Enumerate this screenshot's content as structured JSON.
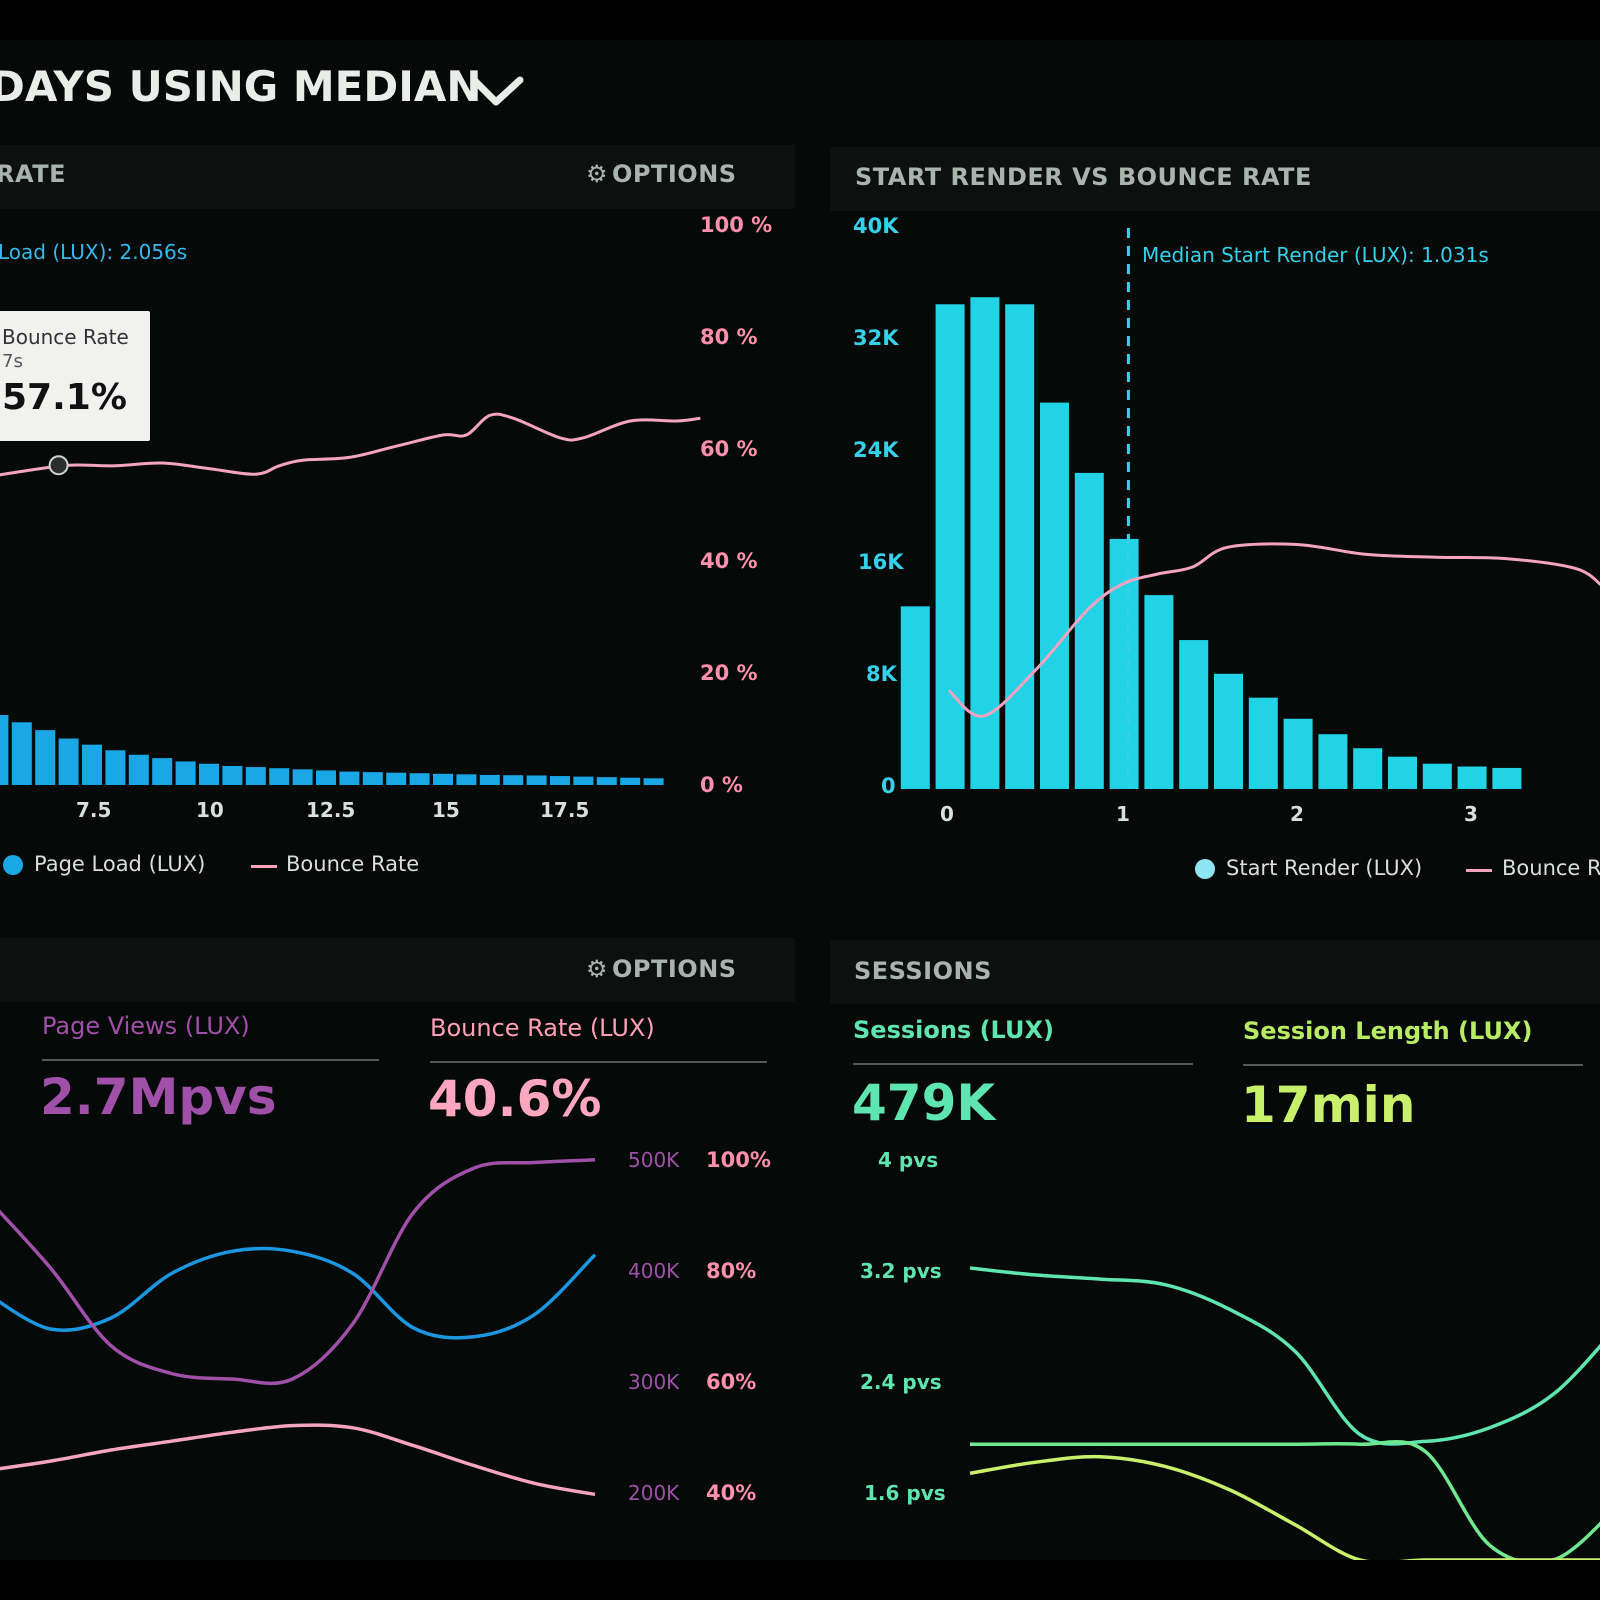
{
  "header": {
    "title_part1": "DAYS USING",
    "title_part2": "MEDIAN"
  },
  "panels": {
    "page_load": {
      "title": "RATE",
      "options": "OPTIONS",
      "median_label": "Load (LUX): 2.056s",
      "tooltip": {
        "series": "Bounce Rate",
        "x": "7s",
        "value": "57.1%"
      },
      "legend": [
        "Page Load (LUX)",
        "Bounce Rate"
      ]
    },
    "start_render": {
      "title": "START RENDER VS BOUNCE RATE",
      "median_label": "Median Start Render (LUX): 1.031s",
      "legend": [
        "Start Render (LUX)",
        "Bounce R"
      ]
    },
    "page_views": {
      "options": "OPTIONS",
      "metrics": [
        {
          "label": "Page Views (LUX)",
          "value": "2.7Mpvs"
        },
        {
          "label": "Bounce Rate (LUX)",
          "value": "40.6%"
        }
      ]
    },
    "sessions": {
      "title": "SESSIONS",
      "metrics": [
        {
          "label": "Sessions (LUX)",
          "value": "479K"
        },
        {
          "label": "Session Length (LUX)",
          "value": "17min"
        }
      ]
    }
  },
  "colors": {
    "page_load_bars": "#1aa7e6",
    "bounce_rate": "#f4a3c0",
    "start_render_bars": "#22d3e6",
    "page_views": "#a050a8",
    "bounce_rate_lux": "#ff8fae",
    "sessions": "#5fe6b0",
    "session_length": "#c9f06a"
  },
  "chart_data": [
    {
      "type": "bar",
      "x_tick_labels": [
        "7.5",
        "10",
        "12.5",
        "15",
        "17.5"
      ],
      "y_right_tick_labels": [
        "100 %",
        "80 %",
        "60 %",
        "40 %",
        "20 %",
        "0 %"
      ],
      "y_right_range": [
        0,
        100
      ],
      "x_range": [
        4.5,
        20.5
      ],
      "series": [
        {
          "name": "Page Load (LUX)",
          "x": [
            5.0,
            5.5,
            6.0,
            6.5,
            7.0,
            7.5,
            8.0,
            8.5,
            9.0,
            9.5,
            10.0,
            10.5,
            11.0,
            11.5,
            12.0,
            12.5,
            13.0,
            13.5,
            14.0,
            14.5,
            15.0,
            15.5,
            16.0,
            16.5,
            17.0,
            17.5,
            18.0,
            18.5,
            19.0,
            19.5
          ],
          "values": [
            14,
            12.5,
            11.2,
            9.8,
            8.3,
            7.2,
            6.2,
            5.4,
            4.8,
            4.2,
            3.8,
            3.4,
            3.2,
            3.0,
            2.8,
            2.6,
            2.4,
            2.3,
            2.2,
            2.1,
            2.0,
            1.9,
            1.8,
            1.75,
            1.7,
            1.6,
            1.5,
            1.4,
            1.3,
            1.2
          ]
        },
        {
          "name": "Bounce Rate",
          "type": "line",
          "x": [
            4.5,
            6.0,
            7.0,
            8.0,
            9.0,
            10.0,
            11.0,
            11.5,
            12.0,
            13.0,
            14.0,
            15.0,
            15.5,
            16.0,
            16.5,
            17.5,
            18.0,
            19.0,
            20.0,
            20.5
          ],
          "values": [
            54,
            56,
            57.1,
            57,
            57.5,
            56.5,
            55.5,
            57,
            58,
            58.5,
            60.5,
            62.5,
            62.5,
            66,
            65.5,
            62,
            62,
            65,
            65,
            65.5
          ]
        }
      ]
    },
    {
      "type": "bar",
      "x_tick_labels": [
        "0",
        "1",
        "2",
        "3"
      ],
      "y_tick_labels": [
        "40K",
        "32K",
        "24K",
        "16K",
        "8K",
        "0"
      ],
      "y_range": [
        0,
        40000
      ],
      "x_range": [
        0,
        3.75
      ],
      "annotation": {
        "text": "Median Start Render (LUX): 1.031s",
        "x": 1.031
      },
      "series": [
        {
          "name": "Start Render (LUX)",
          "x": [
            0.2,
            0.4,
            0.6,
            0.8,
            1.0,
            1.2,
            1.4,
            1.6,
            1.8,
            2.0,
            2.2,
            2.4,
            2.6,
            2.8,
            3.0,
            3.2,
            3.4,
            3.6
          ],
          "values": [
            13000,
            34500,
            35000,
            34500,
            27500,
            22500,
            17800,
            13800,
            10600,
            8200,
            6500,
            5000,
            3900,
            2900,
            2300,
            1800,
            1600,
            1500
          ]
        },
        {
          "name": "Bounce Rate",
          "type": "line",
          "x": [
            0,
            0.2,
            0.5,
            0.8,
            1.0,
            1.2,
            1.4,
            1.6,
            2.0,
            2.4,
            2.8,
            3.2,
            3.6,
            3.75
          ],
          "values": [
            7000,
            5200,
            8500,
            12800,
            14600,
            15300,
            15800,
            17200,
            17400,
            16700,
            16500,
            16400,
            15700,
            14500
          ]
        }
      ]
    },
    {
      "type": "line",
      "y_left_tick_labels": [
        "500K",
        "400K",
        "300K",
        "200K"
      ],
      "y_right_tick_labels": [
        "100%",
        "80%",
        "60%",
        "40%"
      ],
      "y_left_range": [
        150000,
        500000
      ],
      "y_right_range": [
        30,
        100
      ],
      "series": [
        {
          "x": [
            0,
            1,
            2,
            3,
            4,
            5,
            6,
            7,
            8,
            9,
            10
          ],
          "values": [
            375000,
            345000,
            355000,
            395000,
            415000,
            415000,
            395000,
            346000,
            338000,
            358000,
            412000
          ]
        },
        {
          "x": [
            0,
            1,
            2,
            3,
            4,
            5,
            6,
            7,
            8,
            9,
            10
          ],
          "values": [
            92,
            80,
            66,
            61,
            60,
            60,
            70,
            90,
            98,
            99,
            99.5
          ]
        },
        {
          "x": [
            0,
            1,
            2,
            3,
            4,
            5,
            6,
            7,
            8,
            9,
            10
          ],
          "values": [
            218000,
            226000,
            236000,
            244000,
            252000,
            258000,
            256000,
            240000,
            222000,
            206000,
            196000
          ]
        }
      ]
    },
    {
      "type": "line",
      "y_tick_labels": [
        "4 pvs",
        "3.2 pvs",
        "2.4 pvs",
        "1.6 pvs"
      ],
      "y_range": [
        1.0,
        4.0
      ],
      "series": [
        {
          "x": [
            0,
            1,
            2,
            3,
            4,
            5,
            6,
            7,
            8,
            9,
            10
          ],
          "values": [
            3.2,
            3.15,
            3.12,
            3.08,
            2.9,
            2.6,
            2.0,
            1.95,
            2.05,
            2.3,
            2.8
          ]
        },
        {
          "x": [
            0,
            1,
            2,
            3,
            4,
            5,
            6,
            7,
            8,
            9,
            10
          ],
          "values": [
            1.93,
            1.93,
            1.93,
            1.93,
            1.93,
            1.93,
            1.93,
            1.88,
            1.2,
            1.1,
            1.5
          ]
        },
        {
          "x": [
            0,
            1,
            2,
            3,
            4,
            5,
            6,
            7,
            8,
            9,
            10
          ],
          "values": [
            1.72,
            1.8,
            1.84,
            1.77,
            1.6,
            1.35,
            1.0,
            1.0,
            1.0,
            1.0,
            1.0
          ]
        }
      ]
    }
  ]
}
